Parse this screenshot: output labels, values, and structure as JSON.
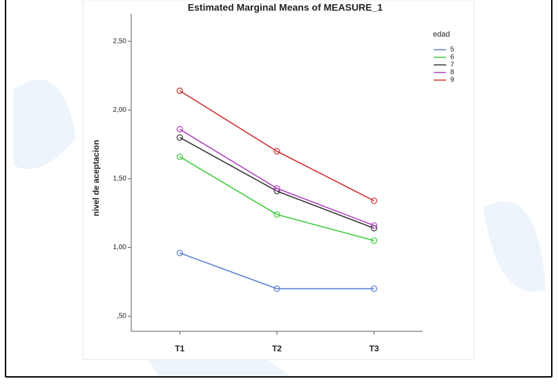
{
  "chart_data": {
    "type": "line",
    "title": "Estimated Marginal Means of MEASURE_1",
    "y_label": "nivel de aceptacion",
    "legend_title": "edad",
    "legend": "right",
    "categories": [
      "T1",
      "T2",
      "T3"
    ],
    "series": [
      {
        "name": "5",
        "color": "#5b7fd6",
        "values": [
          0.96,
          0.7,
          0.7
        ]
      },
      {
        "name": "6",
        "color": "#3dcc3d",
        "values": [
          1.66,
          1.24,
          1.05
        ]
      },
      {
        "name": "7",
        "color": "#333333",
        "values": [
          1.8,
          1.41,
          1.14
        ]
      },
      {
        "name": "8",
        "color": "#b040c0",
        "values": [
          1.86,
          1.43,
          1.16
        ]
      },
      {
        "name": "9",
        "color": "#d03030",
        "values": [
          2.14,
          1.7,
          1.34
        ]
      }
    ],
    "ylim": [
      0.39,
      2.7
    ],
    "yticks": [
      {
        "value": 0.5,
        "label": ",50"
      },
      {
        "value": 1.0,
        "label": "1,00"
      },
      {
        "value": 1.5,
        "label": "1,50"
      },
      {
        "value": 2.0,
        "label": "2,00"
      },
      {
        "value": 2.5,
        "label": "2,50"
      }
    ]
  }
}
